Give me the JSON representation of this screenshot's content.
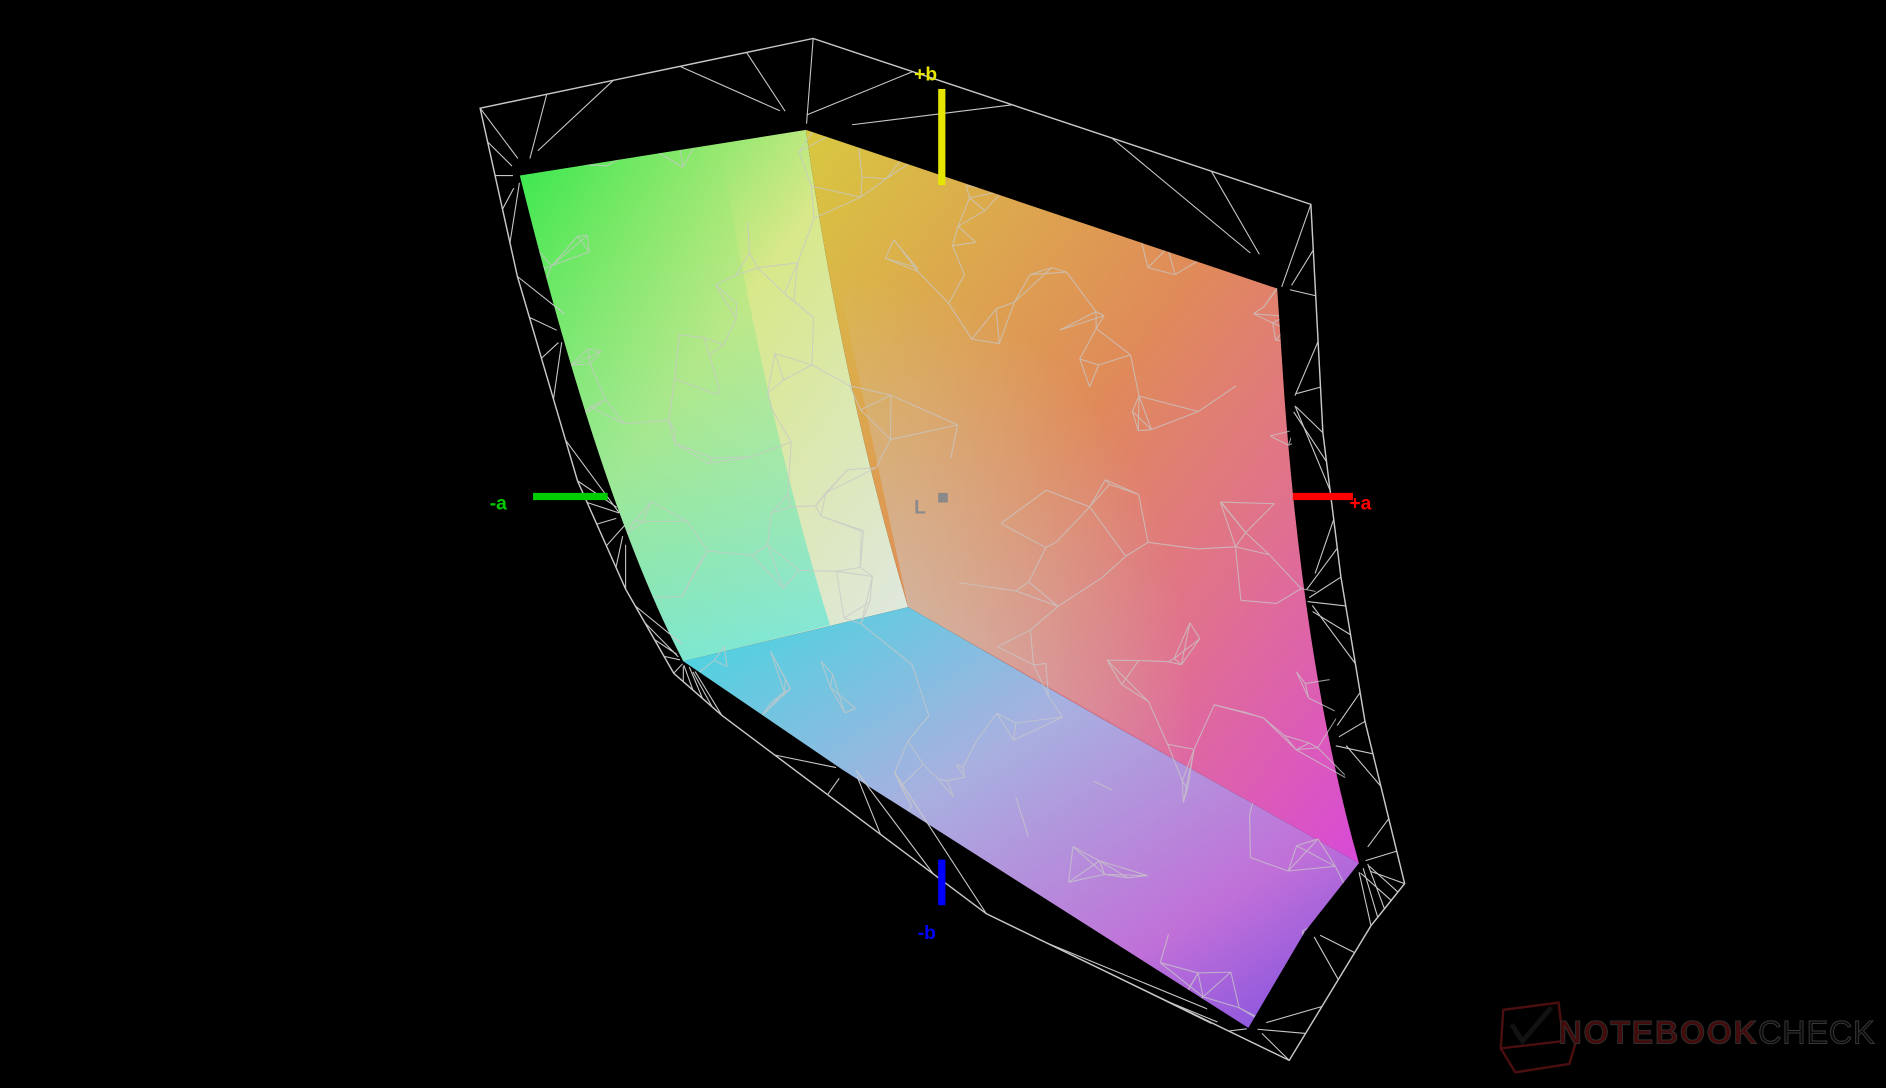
{
  "axes": {
    "plus_b": {
      "label": "+b",
      "color": "#e6e600"
    },
    "minus_b": {
      "label": "-b",
      "color": "#0000ff"
    },
    "plus_a": {
      "label": "+a",
      "color": "#ff0000"
    },
    "minus_a": {
      "label": "-a",
      "color": "#00cc00"
    },
    "lightness": {
      "label": "L",
      "color": "#8a8a8a"
    }
  },
  "gamut_colors": {
    "green": "#2ee84a",
    "yellow": "#e6e62a",
    "red": "#e65a4a",
    "magenta": "#d84ad8",
    "blue": "#7a4ee0",
    "cyan": "#2ee6e6",
    "white": "#e8e8e8"
  },
  "wireframe_color": "#c8c8c8",
  "logo": {
    "part1": "NOTEBOOK",
    "part2": "CHECK"
  }
}
